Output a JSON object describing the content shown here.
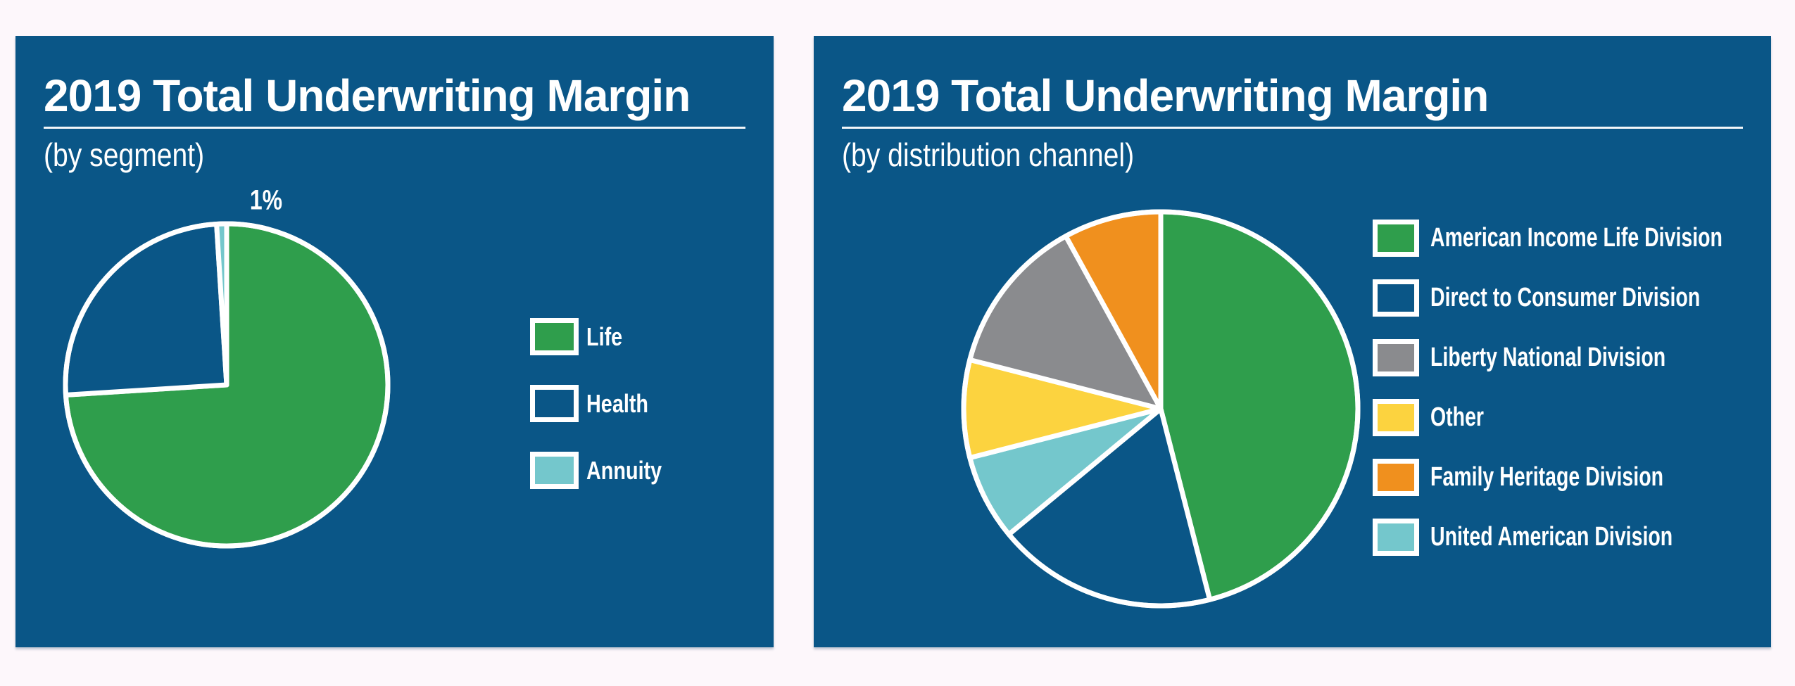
{
  "page": {
    "background_color": "#fdf7fb",
    "panel_color": "#0a5687",
    "text_color": "#ffffff",
    "slice_border_color": "#ffffff"
  },
  "chart_data": [
    {
      "type": "pie",
      "title": "2019 Total Underwriting Margin",
      "subtitle": "(by segment)",
      "start_angle_deg": 0,
      "direction": "clockwise",
      "legend_position": "right",
      "slices": [
        {
          "label": "Life",
          "value": 74,
          "pct_label": "74%",
          "color": "#2f9e4c",
          "label_angle": 125,
          "label_r": 0.45
        },
        {
          "label": "Health",
          "value": 25,
          "pct_label": "25%",
          "color": "#0a5687",
          "label_angle": 311.4,
          "label_r": 0.58
        },
        {
          "label": "Annuity",
          "value": 1,
          "pct_label": "1%",
          "color": "#74c7cc",
          "label_angle": 12,
          "label_r": 1.17
        }
      ],
      "legend": [
        "Life",
        "Health",
        "Annuity"
      ]
    },
    {
      "type": "pie",
      "title": "2019 Total Underwriting Margin",
      "subtitle": "(by distribution channel)",
      "start_angle_deg": 0,
      "direction": "clockwise",
      "legend_position": "right",
      "slices": [
        {
          "label": "American Income Life Division",
          "value": 46,
          "pct_label": "46%",
          "color": "#2f9e4c",
          "label_angle": 84,
          "label_r": 0.53
        },
        {
          "label": "Direct to Consumer Division",
          "value": 18,
          "pct_label": "18%",
          "color": "#0a5687",
          "label_angle": 191,
          "label_r": 0.61
        },
        {
          "label": "United American Division",
          "value": 7,
          "pct_label": "7%",
          "color": "#74c7cc",
          "label_angle": 240,
          "label_r": 0.64
        },
        {
          "label": "Other",
          "value": 8,
          "pct_label": "8%",
          "color": "#fcd33f",
          "label_angle": 272,
          "label_r": 0.7
        },
        {
          "label": "Liberty National Division",
          "value": 13,
          "pct_label": "13%",
          "color": "#8a8b8e",
          "label_angle": 307.6,
          "label_r": 0.67
        },
        {
          "label": "Family Heritage Division",
          "value": 8,
          "pct_label": "8%",
          "color": "#f0901e",
          "label_angle": 345.5,
          "label_r": 0.75
        }
      ],
      "legend": [
        "American Income Life Division",
        "Direct to Consumer Division",
        "Liberty National Division",
        "Other",
        "Family Heritage Division",
        "United American Division"
      ]
    }
  ]
}
